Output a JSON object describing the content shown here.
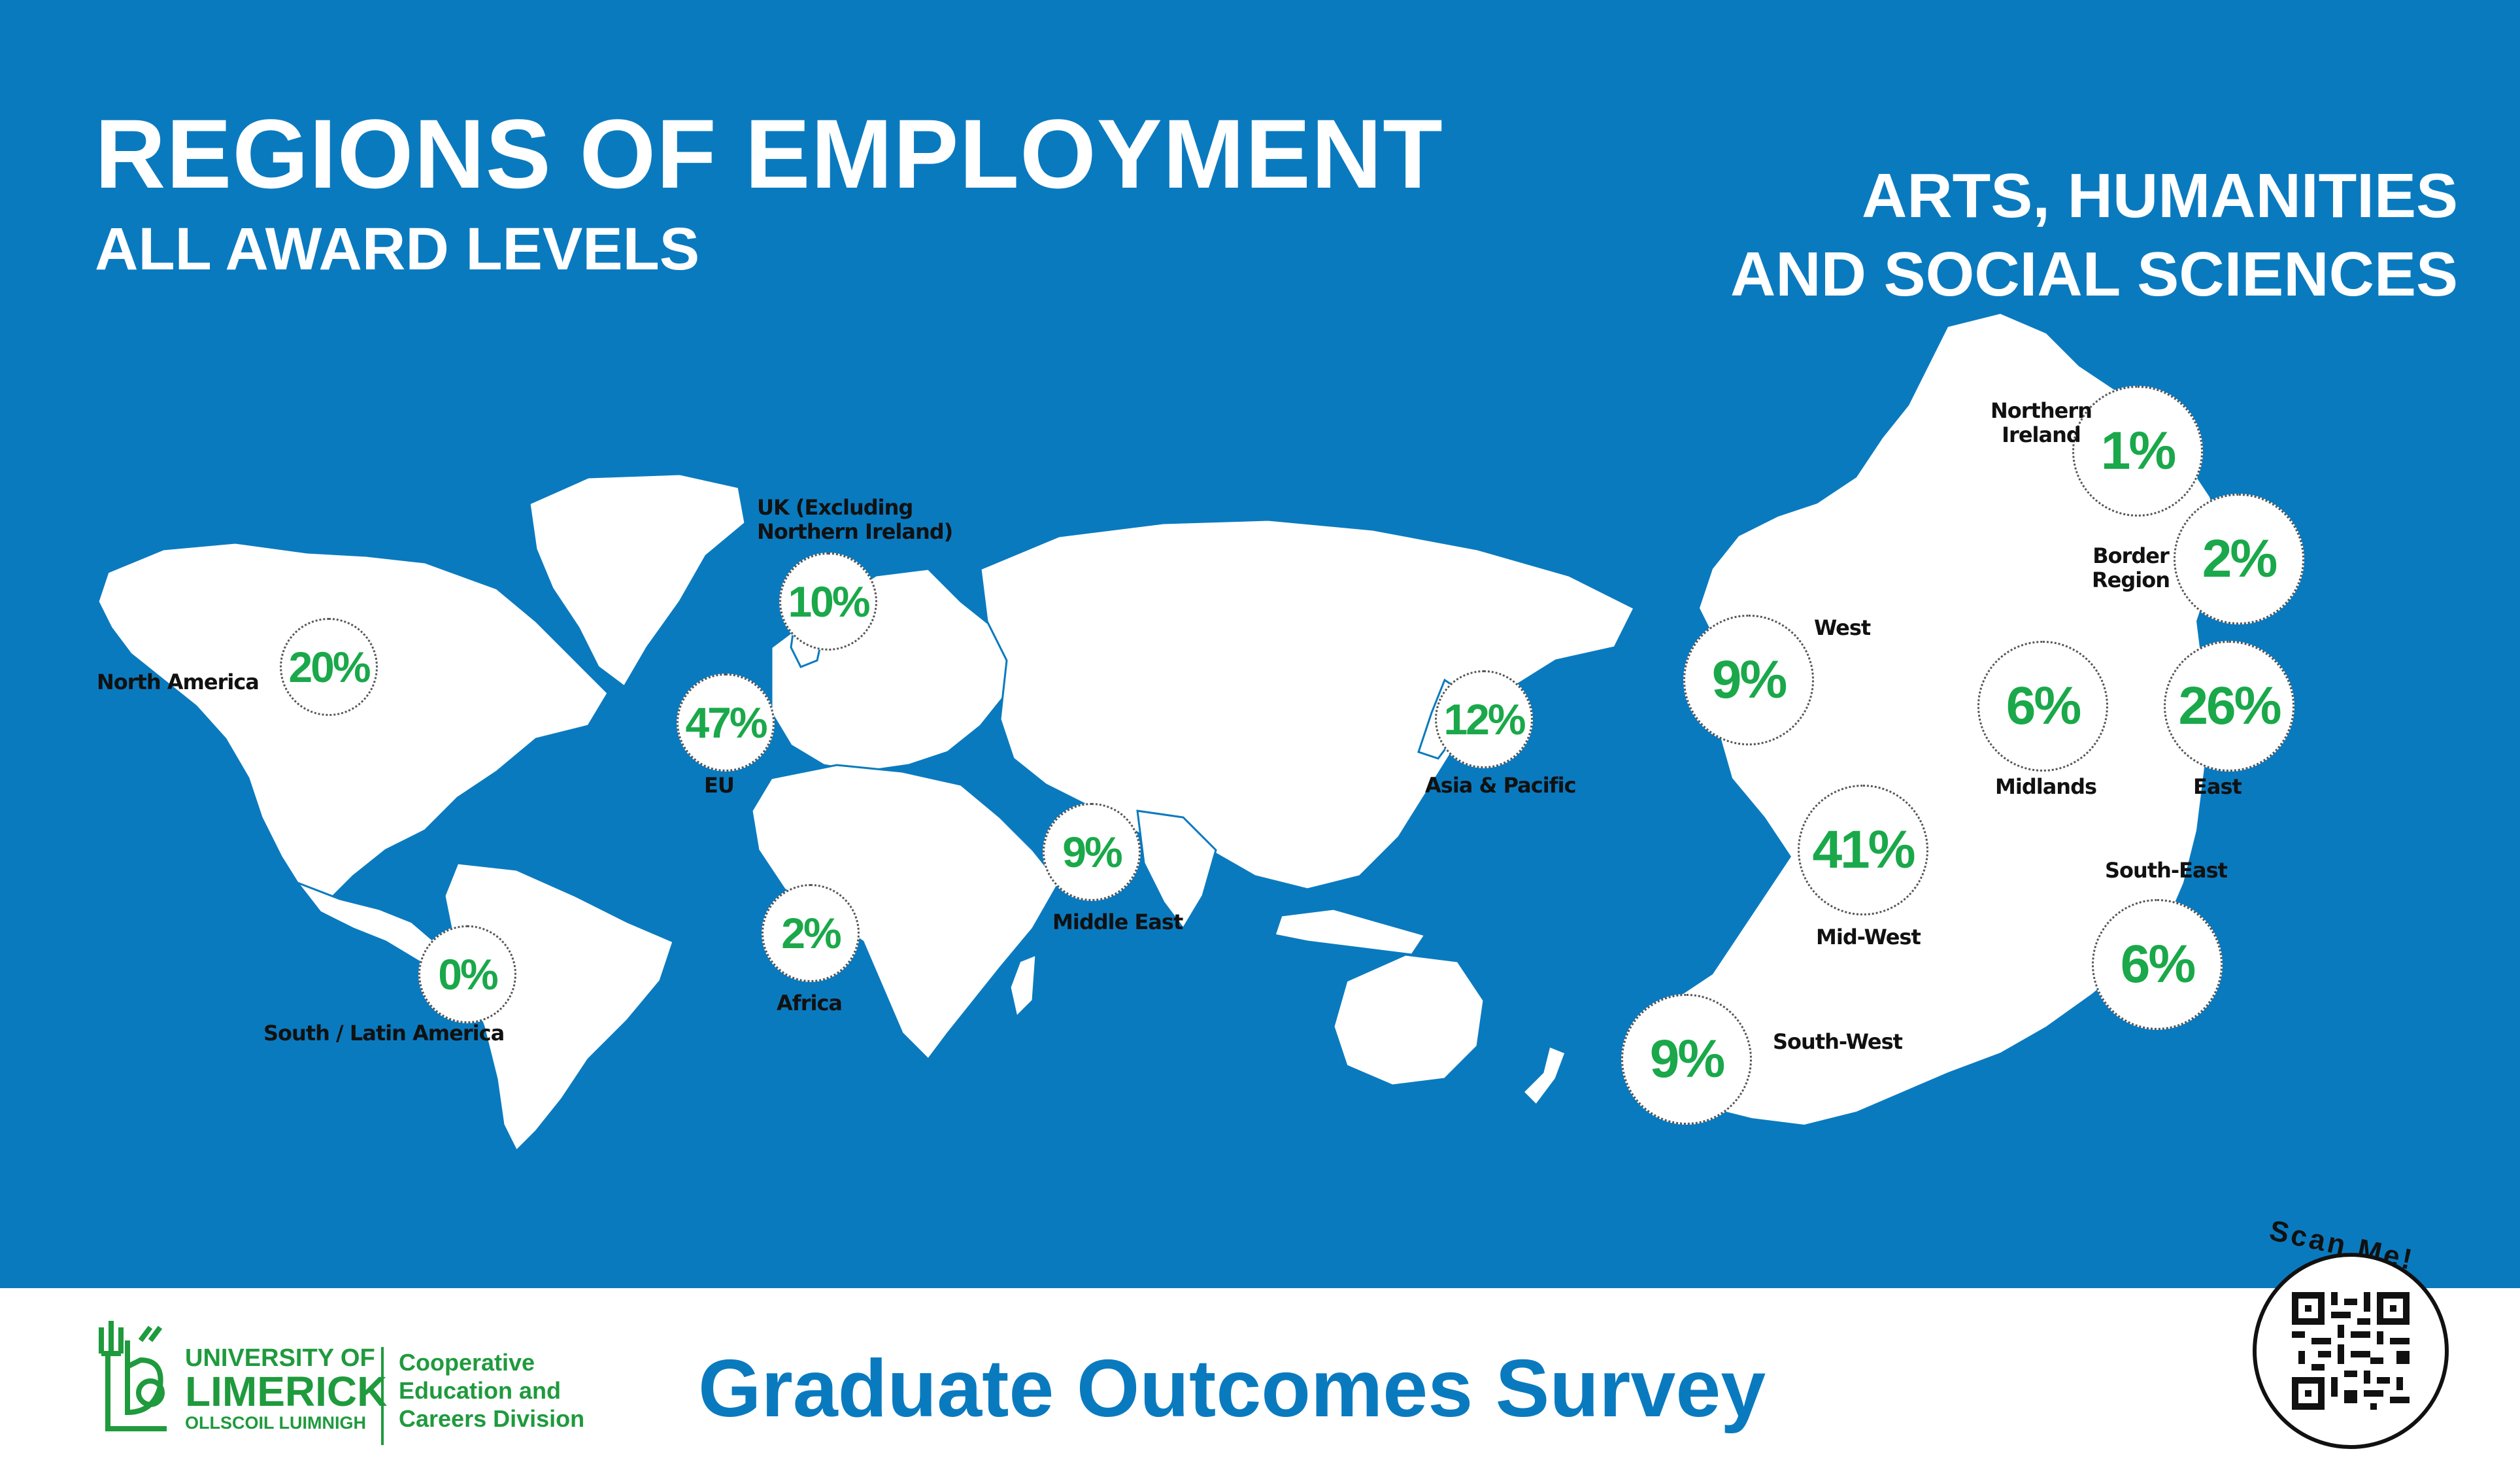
{
  "title": "REGIONS OF EMPLOYMENT",
  "subtitle": "ALL AWARD LEVELS",
  "faculty_line1": "ARTS, HUMANITIES",
  "faculty_line2": "AND SOCIAL SCIENCES",
  "world_regions": [
    {
      "name": "North America",
      "value": "20%"
    },
    {
      "name": "UK (Excluding Northern Ireland)",
      "name_line1": "UK (Excluding",
      "name_line2": "Northern Ireland)",
      "value": "10%"
    },
    {
      "name": "EU",
      "value": "47%"
    },
    {
      "name": "Asia & Pacific",
      "value": "12%"
    },
    {
      "name": "Middle East",
      "value": "9%"
    },
    {
      "name": "Africa",
      "value": "2%"
    },
    {
      "name": "South / Latin America",
      "value": "0%"
    }
  ],
  "ireland_regions": [
    {
      "name": "Northern Ireland",
      "name_line1": "Northern",
      "name_line2": "Ireland",
      "value": "1%"
    },
    {
      "name": "Border Region",
      "name_line1": "Border",
      "name_line2": "Region",
      "value": "2%"
    },
    {
      "name": "West",
      "value": "9%"
    },
    {
      "name": "Midlands",
      "value": "6%"
    },
    {
      "name": "East",
      "value": "26%"
    },
    {
      "name": "Mid-West",
      "value": "41%"
    },
    {
      "name": "South-East",
      "value": "6%"
    },
    {
      "name": "South-West",
      "value": "9%"
    }
  ],
  "footer": {
    "uni_line1": "UNIVERSITY OF",
    "uni_line2": "LIMERICK",
    "uni_line3": "OLLSCOIL LUIMNIGH",
    "division_line1": "Cooperative",
    "division_line2": "Education and",
    "division_line3": "Careers Division",
    "survey_title": "Graduate Outcomes Survey",
    "scan_label": "Scan Me!"
  },
  "colors": {
    "background": "#0a7abf",
    "accent_green": "#1aa84a",
    "brand_green": "#1f9a3d",
    "land": "#ffffff"
  }
}
